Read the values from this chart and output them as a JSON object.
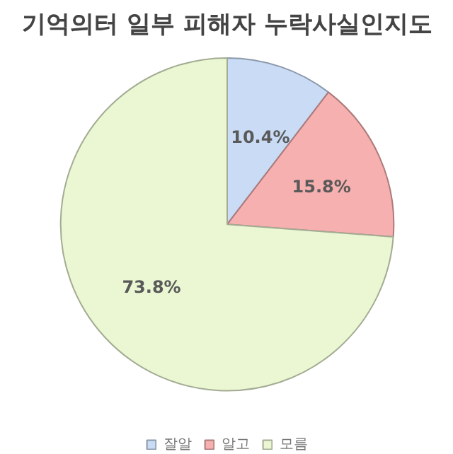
{
  "chart_data": {
    "type": "pie",
    "title": "기억의터 일부 피해자 누락사실인지도",
    "categories": [
      "잘알",
      "알고",
      "모름"
    ],
    "values": [
      10.4,
      15.8,
      73.8
    ],
    "colors": [
      "#c9dbf5",
      "#f7b0b0",
      "#eaf7d2"
    ],
    "value_labels": [
      "10.4%",
      "15.8%",
      "73.8%"
    ],
    "legend": "bottom"
  }
}
